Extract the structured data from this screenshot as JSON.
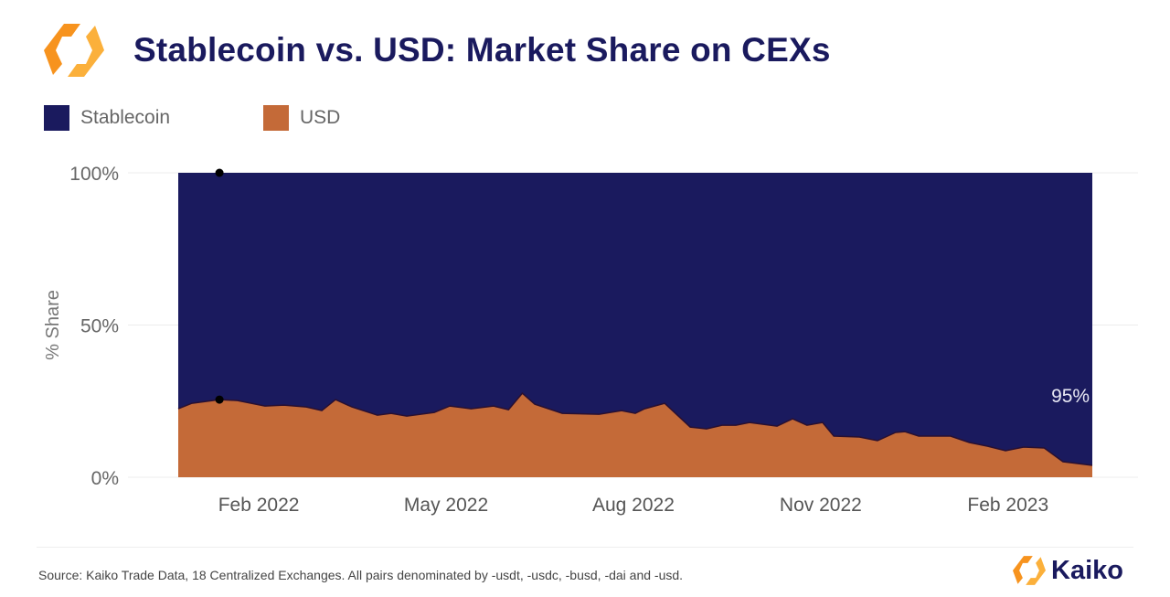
{
  "header": {
    "title": "Stablecoin vs. USD: Market Share on CEXs",
    "logo_text": "Kaiko"
  },
  "footer": {
    "source": "Source: Kaiko Trade Data, 18 Centralized Exchanges. All pairs denominated by -usdt, -usdc, -busd, -dai and -usd.",
    "brand": "Kaiko"
  },
  "colors": {
    "stablecoin": "#1a1a5e",
    "usd": "#c46a38",
    "title": "#1a1a5e",
    "logo_orange": "#f7931e",
    "logo_yellow": "#fbb03b"
  },
  "chart_data": {
    "type": "area",
    "stacked": true,
    "title": "Stablecoin vs. USD: Market Share on CEXs",
    "xlabel": "",
    "ylabel": "% Share",
    "x_units": "months since Feb 2022",
    "xlim": [
      -1.29,
      13.35
    ],
    "ylim": [
      0,
      100
    ],
    "x_ticks": [
      {
        "value": 0,
        "label": "Feb 2022"
      },
      {
        "value": 3,
        "label": "May 2022"
      },
      {
        "value": 6,
        "label": "Aug 2022"
      },
      {
        "value": 9,
        "label": "Nov 2022"
      },
      {
        "value": 12,
        "label": "Feb 2023"
      }
    ],
    "y_ticks": [
      {
        "value": 0,
        "label": "0%"
      },
      {
        "value": 50,
        "label": "50%"
      },
      {
        "value": 100,
        "label": "100%"
      }
    ],
    "legend": {
      "placement": "top-left",
      "entries": [
        "Stablecoin",
        "USD"
      ]
    },
    "grid": true,
    "x": [
      -1.29,
      -1.07,
      -0.63,
      -0.34,
      0.1,
      0.4,
      0.76,
      1.01,
      1.23,
      1.49,
      1.9,
      2.12,
      2.37,
      2.81,
      3.06,
      3.4,
      3.76,
      4.0,
      4.22,
      4.42,
      4.86,
      5.45,
      5.81,
      6.03,
      6.18,
      6.5,
      6.91,
      7.17,
      7.42,
      7.64,
      7.86,
      8.3,
      8.55,
      8.78,
      9.03,
      9.21,
      9.62,
      9.91,
      10.2,
      10.35,
      10.57,
      11.08,
      11.38,
      11.67,
      11.96,
      12.25,
      12.58,
      12.88,
      13.35
    ],
    "series": [
      {
        "name": "USD",
        "values": [
          22.5,
          24.3,
          25.5,
          25.2,
          23.4,
          23.7,
          23.1,
          21.9,
          25.5,
          23.1,
          20.4,
          21.0,
          20.1,
          21.3,
          23.4,
          22.5,
          23.4,
          22.2,
          27.6,
          24.0,
          21.0,
          20.7,
          21.9,
          21.0,
          22.5,
          24.3,
          16.5,
          15.9,
          17.1,
          17.1,
          18.0,
          16.8,
          19.2,
          17.1,
          18.0,
          13.5,
          13.2,
          12.0,
          14.7,
          15.0,
          13.5,
          13.5,
          11.4,
          10.2,
          8.7,
          9.9,
          9.6,
          5.1,
          3.9
        ]
      },
      {
        "name": "Stablecoin",
        "values": "remainder to 100%"
      }
    ],
    "markers": [
      {
        "x": -0.63,
        "y": 100
      },
      {
        "x": -0.63,
        "y": 25.5
      }
    ],
    "annotations": [
      {
        "text": "95%",
        "x": 13.0,
        "y": 27
      }
    ]
  }
}
